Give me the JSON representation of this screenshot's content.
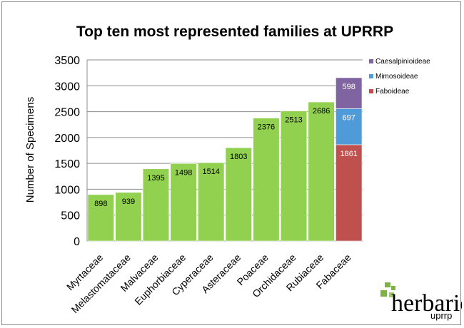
{
  "chart_data": {
    "type": "bar",
    "title": "Top ten most represented families at UPRRP",
    "xlabel": "",
    "ylabel": "Number of Specimens",
    "ylim": [
      0,
      3500
    ],
    "yticks": [
      0,
      500,
      1000,
      1500,
      2000,
      2500,
      3000,
      3500
    ],
    "grid": true,
    "legend_position": "right",
    "categories": [
      "Myrtaceae",
      "Melastomataceae",
      "Malvaceae",
      "Euphorbiaceae",
      "Cyperaceae",
      "Asteraceae",
      "Poaceae",
      "Orchidaceae",
      "Rubiaceae",
      "Fabaceae"
    ],
    "values": [
      898,
      939,
      1395,
      1498,
      1514,
      1803,
      2376,
      2513,
      2686,
      null
    ],
    "stacked": {
      "category": "Fabaceae",
      "series": [
        {
          "name": "Faboideae",
          "value": 1861,
          "color": "#c0504d"
        },
        {
          "name": "Mimosoideae",
          "value": 697,
          "color": "#4f9bd9"
        },
        {
          "name": "Caesalpinioideae",
          "value": 598,
          "color": "#8064a2"
        }
      ]
    },
    "bar_color": "#92d050"
  },
  "logo": {
    "text": "herbario",
    "subtext": "uprrp",
    "color": "#7cb342"
  }
}
